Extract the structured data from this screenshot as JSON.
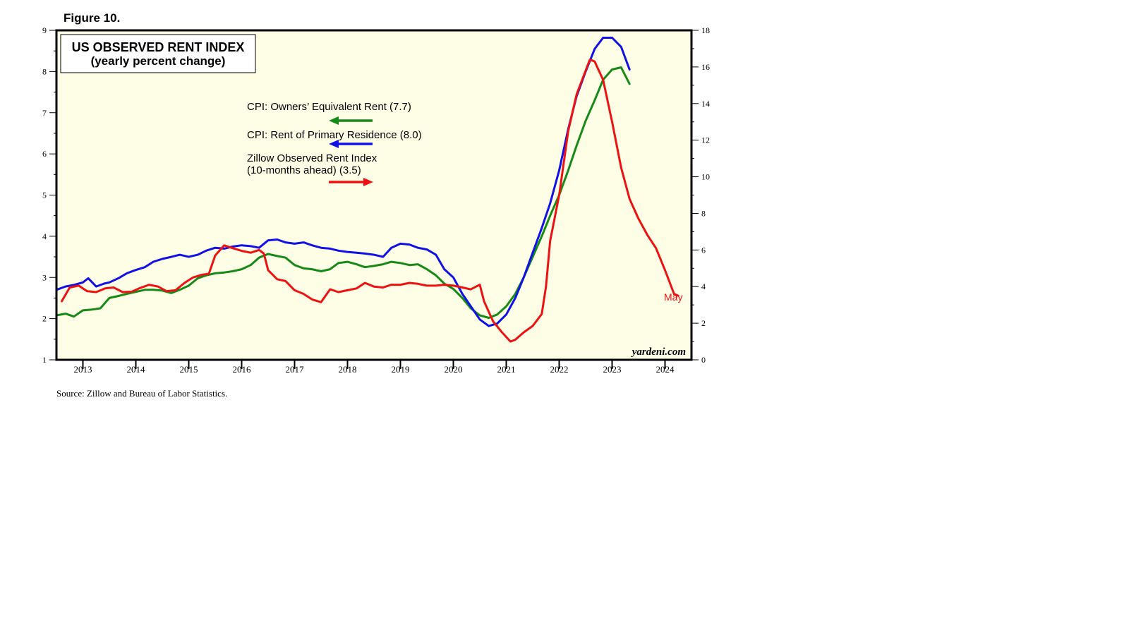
{
  "figure_label": "Figure 10.",
  "source_note": "Source: Zillow and Bureau of Labor Statistics.",
  "watermark": "yardeni.com",
  "colors": {
    "plot_background": "#fefee6",
    "owners_equivalent_rent": "#168a16",
    "rent_primary_residence": "#1010e8",
    "zillow": "#ee1111"
  },
  "chart_data": {
    "type": "line",
    "title": "US OBSERVED RENT INDEX",
    "subtitle": "(yearly percent change)",
    "x_unit": "year (decimal)",
    "xlim": [
      2012.5,
      2024.5
    ],
    "x_tick_labels": [
      "2013",
      "2014",
      "2015",
      "2016",
      "2017",
      "2018",
      "2019",
      "2020",
      "2021",
      "2022",
      "2023",
      "2024"
    ],
    "left_axis": {
      "ylim": [
        1,
        9
      ],
      "ticks": [
        1,
        2,
        3,
        4,
        5,
        6,
        7,
        8,
        9
      ],
      "labels": [
        "1",
        "2",
        "3",
        "4",
        "5",
        "6",
        "7",
        "8",
        "9"
      ]
    },
    "right_axis": {
      "ylim": [
        0,
        18
      ],
      "ticks": [
        0,
        2,
        4,
        6,
        8,
        10,
        12,
        14,
        16,
        18
      ],
      "labels": [
        "0",
        "2",
        "4",
        "6",
        "8",
        "10",
        "12",
        "14",
        "16",
        "18"
      ]
    },
    "end_label": "May",
    "series": [
      {
        "name": "CPI: Owners’ Equivalent Rent (7.7)",
        "axis": "left",
        "points": [
          [
            2012.5,
            2.08
          ],
          [
            2012.67,
            2.12
          ],
          [
            2012.83,
            2.05
          ],
          [
            2013.0,
            2.2
          ],
          [
            2013.17,
            2.22
          ],
          [
            2013.33,
            2.25
          ],
          [
            2013.5,
            2.5
          ],
          [
            2013.67,
            2.55
          ],
          [
            2013.83,
            2.6
          ],
          [
            2014.0,
            2.65
          ],
          [
            2014.17,
            2.7
          ],
          [
            2014.33,
            2.7
          ],
          [
            2014.5,
            2.68
          ],
          [
            2014.67,
            2.62
          ],
          [
            2014.83,
            2.7
          ],
          [
            2015.0,
            2.8
          ],
          [
            2015.17,
            2.98
          ],
          [
            2015.33,
            3.05
          ],
          [
            2015.5,
            3.1
          ],
          [
            2015.67,
            3.12
          ],
          [
            2015.83,
            3.15
          ],
          [
            2016.0,
            3.2
          ],
          [
            2016.17,
            3.3
          ],
          [
            2016.33,
            3.48
          ],
          [
            2016.5,
            3.57
          ],
          [
            2016.67,
            3.52
          ],
          [
            2016.83,
            3.48
          ],
          [
            2017.0,
            3.3
          ],
          [
            2017.17,
            3.22
          ],
          [
            2017.33,
            3.2
          ],
          [
            2017.5,
            3.15
          ],
          [
            2017.67,
            3.2
          ],
          [
            2017.83,
            3.35
          ],
          [
            2018.0,
            3.38
          ],
          [
            2018.17,
            3.32
          ],
          [
            2018.33,
            3.25
          ],
          [
            2018.5,
            3.28
          ],
          [
            2018.67,
            3.32
          ],
          [
            2018.83,
            3.38
          ],
          [
            2019.0,
            3.35
          ],
          [
            2019.17,
            3.3
          ],
          [
            2019.33,
            3.32
          ],
          [
            2019.5,
            3.2
          ],
          [
            2019.67,
            3.05
          ],
          [
            2019.83,
            2.85
          ],
          [
            2020.0,
            2.72
          ],
          [
            2020.17,
            2.5
          ],
          [
            2020.33,
            2.25
          ],
          [
            2020.5,
            2.08
          ],
          [
            2020.67,
            2.02
          ],
          [
            2020.83,
            2.1
          ],
          [
            2021.0,
            2.3
          ],
          [
            2021.17,
            2.6
          ],
          [
            2021.33,
            3.0
          ],
          [
            2021.5,
            3.5
          ],
          [
            2021.67,
            4.0
          ],
          [
            2021.83,
            4.5
          ],
          [
            2022.0,
            5.0
          ],
          [
            2022.17,
            5.6
          ],
          [
            2022.33,
            6.2
          ],
          [
            2022.5,
            6.8
          ],
          [
            2022.67,
            7.3
          ],
          [
            2022.83,
            7.8
          ],
          [
            2023.0,
            8.05
          ],
          [
            2023.17,
            8.1
          ],
          [
            2023.33,
            7.7
          ]
        ]
      },
      {
        "name": "CPI: Rent of Primary Residence (8.0)",
        "axis": "left",
        "points": [
          [
            2012.5,
            2.7
          ],
          [
            2012.67,
            2.78
          ],
          [
            2012.83,
            2.82
          ],
          [
            2013.0,
            2.88
          ],
          [
            2013.1,
            2.98
          ],
          [
            2013.25,
            2.78
          ],
          [
            2013.4,
            2.85
          ],
          [
            2013.5,
            2.88
          ],
          [
            2013.67,
            2.98
          ],
          [
            2013.83,
            3.1
          ],
          [
            2014.0,
            3.18
          ],
          [
            2014.17,
            3.25
          ],
          [
            2014.33,
            3.38
          ],
          [
            2014.5,
            3.45
          ],
          [
            2014.67,
            3.5
          ],
          [
            2014.83,
            3.55
          ],
          [
            2015.0,
            3.5
          ],
          [
            2015.17,
            3.55
          ],
          [
            2015.33,
            3.65
          ],
          [
            2015.5,
            3.72
          ],
          [
            2015.67,
            3.7
          ],
          [
            2015.83,
            3.75
          ],
          [
            2016.0,
            3.78
          ],
          [
            2016.17,
            3.76
          ],
          [
            2016.33,
            3.72
          ],
          [
            2016.5,
            3.9
          ],
          [
            2016.67,
            3.92
          ],
          [
            2016.83,
            3.85
          ],
          [
            2017.0,
            3.82
          ],
          [
            2017.17,
            3.85
          ],
          [
            2017.33,
            3.78
          ],
          [
            2017.5,
            3.72
          ],
          [
            2017.67,
            3.7
          ],
          [
            2017.83,
            3.65
          ],
          [
            2018.0,
            3.62
          ],
          [
            2018.17,
            3.6
          ],
          [
            2018.33,
            3.58
          ],
          [
            2018.5,
            3.55
          ],
          [
            2018.67,
            3.5
          ],
          [
            2018.83,
            3.72
          ],
          [
            2019.0,
            3.82
          ],
          [
            2019.17,
            3.8
          ],
          [
            2019.33,
            3.72
          ],
          [
            2019.5,
            3.68
          ],
          [
            2019.67,
            3.55
          ],
          [
            2019.83,
            3.2
          ],
          [
            2020.0,
            3.0
          ],
          [
            2020.17,
            2.6
          ],
          [
            2020.33,
            2.3
          ],
          [
            2020.5,
            1.98
          ],
          [
            2020.67,
            1.82
          ],
          [
            2020.83,
            1.88
          ],
          [
            2021.0,
            2.1
          ],
          [
            2021.17,
            2.5
          ],
          [
            2021.33,
            3.0
          ],
          [
            2021.5,
            3.6
          ],
          [
            2021.67,
            4.2
          ],
          [
            2021.83,
            4.8
          ],
          [
            2022.0,
            5.6
          ],
          [
            2022.17,
            6.6
          ],
          [
            2022.33,
            7.4
          ],
          [
            2022.5,
            8.0
          ],
          [
            2022.67,
            8.55
          ],
          [
            2022.83,
            8.82
          ],
          [
            2023.0,
            8.82
          ],
          [
            2023.17,
            8.6
          ],
          [
            2023.33,
            8.05
          ]
        ]
      },
      {
        "name": "Zillow Observed Rent Index (10-months ahead) (3.5)",
        "axis": "right",
        "points": [
          [
            2012.6,
            3.2
          ],
          [
            2012.75,
            3.95
          ],
          [
            2012.92,
            4.05
          ],
          [
            2013.08,
            3.75
          ],
          [
            2013.25,
            3.7
          ],
          [
            2013.42,
            3.9
          ],
          [
            2013.58,
            3.95
          ],
          [
            2013.75,
            3.7
          ],
          [
            2013.92,
            3.72
          ],
          [
            2014.08,
            3.92
          ],
          [
            2014.25,
            4.1
          ],
          [
            2014.42,
            4.0
          ],
          [
            2014.58,
            3.75
          ],
          [
            2014.75,
            3.8
          ],
          [
            2014.92,
            4.2
          ],
          [
            2015.08,
            4.5
          ],
          [
            2015.25,
            4.65
          ],
          [
            2015.38,
            4.7
          ],
          [
            2015.5,
            5.7
          ],
          [
            2015.67,
            6.25
          ],
          [
            2015.83,
            6.1
          ],
          [
            2016.0,
            5.95
          ],
          [
            2016.17,
            5.85
          ],
          [
            2016.33,
            6.0
          ],
          [
            2016.42,
            5.8
          ],
          [
            2016.5,
            4.9
          ],
          [
            2016.67,
            4.4
          ],
          [
            2016.83,
            4.3
          ],
          [
            2017.0,
            3.8
          ],
          [
            2017.17,
            3.6
          ],
          [
            2017.33,
            3.3
          ],
          [
            2017.5,
            3.15
          ],
          [
            2017.67,
            3.85
          ],
          [
            2017.83,
            3.7
          ],
          [
            2018.0,
            3.8
          ],
          [
            2018.17,
            3.9
          ],
          [
            2018.33,
            4.2
          ],
          [
            2018.5,
            4.0
          ],
          [
            2018.67,
            3.95
          ],
          [
            2018.83,
            4.1
          ],
          [
            2019.0,
            4.1
          ],
          [
            2019.17,
            4.2
          ],
          [
            2019.33,
            4.15
          ],
          [
            2019.5,
            4.05
          ],
          [
            2019.67,
            4.05
          ],
          [
            2019.83,
            4.1
          ],
          [
            2020.0,
            4.05
          ],
          [
            2020.17,
            3.95
          ],
          [
            2020.33,
            3.85
          ],
          [
            2020.5,
            4.1
          ],
          [
            2020.58,
            3.2
          ],
          [
            2020.75,
            2.1
          ],
          [
            2020.92,
            1.5
          ],
          [
            2021.08,
            1.0
          ],
          [
            2021.17,
            1.1
          ],
          [
            2021.33,
            1.5
          ],
          [
            2021.5,
            1.85
          ],
          [
            2021.67,
            2.5
          ],
          [
            2021.75,
            4.0
          ],
          [
            2021.83,
            6.5
          ],
          [
            2022.0,
            9.0
          ],
          [
            2022.17,
            12.5
          ],
          [
            2022.33,
            14.5
          ],
          [
            2022.5,
            15.8
          ],
          [
            2022.58,
            16.4
          ],
          [
            2022.67,
            16.3
          ],
          [
            2022.83,
            15.3
          ],
          [
            2023.0,
            13.0
          ],
          [
            2023.17,
            10.5
          ],
          [
            2023.33,
            8.8
          ],
          [
            2023.5,
            7.7
          ],
          [
            2023.67,
            6.8
          ],
          [
            2023.83,
            6.1
          ],
          [
            2024.0,
            4.9
          ],
          [
            2024.17,
            3.6
          ],
          [
            2024.25,
            3.5
          ]
        ]
      }
    ]
  }
}
